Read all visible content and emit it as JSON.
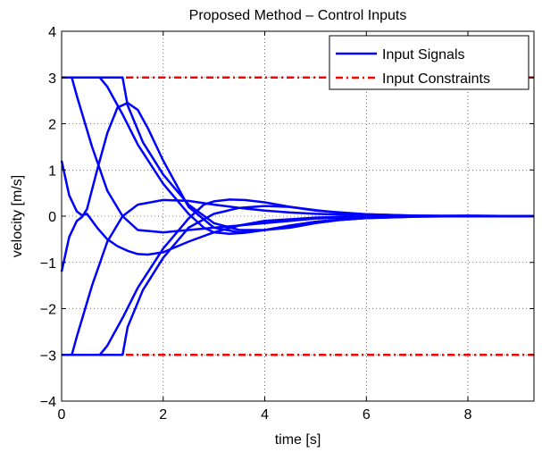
{
  "chart_data": {
    "type": "line",
    "title": "Proposed Method – Control Inputs",
    "xlabel": "time [s]",
    "ylabel": "velocity [m/s]",
    "xlim": [
      0,
      9.3
    ],
    "ylim": [
      -4,
      4
    ],
    "x_ticks": [
      "0",
      "2",
      "4",
      "6",
      "8"
    ],
    "x_tick_values": [
      0,
      2,
      4,
      6,
      8
    ],
    "y_ticks": [
      "−4",
      "−3",
      "−2",
      "−1",
      "0",
      "1",
      "2",
      "3",
      "4"
    ],
    "y_tick_values": [
      -4,
      -3,
      -2,
      -1,
      0,
      1,
      2,
      3,
      4
    ],
    "grid": true,
    "legend_position": "top-right",
    "legend": [
      {
        "label": "Input Signals",
        "color": "#0000ff",
        "style": "solid"
      },
      {
        "label": "Input Constraints",
        "color": "#ff0000",
        "style": "dashdot"
      }
    ],
    "constraints": [
      {
        "y": 3,
        "color": "#ff0000"
      },
      {
        "y": -3,
        "color": "#ff0000"
      }
    ],
    "series": [
      {
        "color": "#0000ff",
        "x": [
          0,
          0.15,
          0.3,
          0.4,
          0.5,
          0.7,
          0.9,
          1.1,
          1.3,
          1.5,
          1.7,
          2.0,
          2.5,
          3.0,
          3.5,
          4.0,
          5.0,
          6.0,
          7.0,
          8.0,
          9.3
        ],
        "y": [
          1.2,
          0.45,
          0.1,
          0.02,
          0.05,
          -0.25,
          -0.5,
          -0.65,
          -0.75,
          -0.82,
          -0.83,
          -0.78,
          -0.55,
          -0.35,
          -0.2,
          -0.1,
          -0.03,
          0.0,
          0.01,
          0.01,
          0.0
        ]
      },
      {
        "color": "#0000ff",
        "x": [
          0,
          0.15,
          0.3,
          0.4,
          0.5,
          0.7,
          0.9,
          1.1,
          1.3,
          1.5,
          1.7,
          2.0,
          2.5,
          3.0,
          3.5,
          4.0,
          5.0,
          6.0,
          7.0,
          8.0,
          9.3
        ],
        "y": [
          -1.2,
          -0.45,
          -0.1,
          -0.02,
          0.15,
          1.0,
          1.8,
          2.35,
          2.45,
          2.3,
          1.9,
          1.2,
          0.2,
          -0.25,
          -0.35,
          -0.3,
          -0.12,
          -0.03,
          0.0,
          0.01,
          0.0
        ]
      },
      {
        "color": "#0000ff",
        "x": [
          0,
          0.2,
          0.3,
          0.6,
          0.9,
          1.2,
          1.5,
          2.0,
          2.5,
          3.0,
          3.5,
          4.0,
          4.5,
          5.0,
          6.0,
          7.0,
          8.0,
          9.3
        ],
        "y": [
          3.0,
          3.0,
          2.6,
          1.5,
          0.55,
          0.0,
          -0.3,
          -0.35,
          -0.3,
          -0.25,
          -0.2,
          -0.15,
          -0.1,
          -0.05,
          -0.02,
          0.0,
          0.0,
          0.0
        ]
      },
      {
        "color": "#0000ff",
        "x": [
          0,
          0.2,
          0.3,
          0.6,
          0.9,
          1.2,
          1.5,
          2.0,
          2.5,
          3.0,
          3.5,
          4.0,
          4.5,
          5.0,
          6.0,
          7.0,
          8.0,
          9.3
        ],
        "y": [
          -3.0,
          -3.0,
          -2.6,
          -1.5,
          -0.55,
          0.0,
          0.25,
          0.35,
          0.33,
          0.25,
          0.18,
          0.12,
          0.08,
          0.05,
          0.02,
          0.0,
          0.0,
          0.0
        ]
      },
      {
        "color": "#0000ff",
        "x": [
          0,
          0.75,
          0.9,
          1.2,
          1.5,
          2.0,
          2.5,
          2.8,
          3.0,
          3.3,
          3.6,
          4.0,
          4.5,
          5.0,
          6.0,
          7.0,
          8.0,
          9.3
        ],
        "y": [
          3.0,
          3.0,
          2.8,
          2.2,
          1.55,
          0.7,
          0.05,
          -0.25,
          -0.35,
          -0.38,
          -0.36,
          -0.3,
          -0.2,
          -0.12,
          -0.04,
          -0.01,
          0.0,
          0.0
        ]
      },
      {
        "color": "#0000ff",
        "x": [
          0,
          0.75,
          0.9,
          1.2,
          1.5,
          2.0,
          2.5,
          2.8,
          3.0,
          3.3,
          3.6,
          4.0,
          4.5,
          5.0,
          6.0,
          7.0,
          8.0,
          9.3
        ],
        "y": [
          -3.0,
          -3.0,
          -2.8,
          -2.2,
          -1.55,
          -0.7,
          -0.05,
          0.25,
          0.32,
          0.36,
          0.35,
          0.3,
          0.2,
          0.12,
          0.04,
          0.01,
          0.0,
          0.0
        ]
      },
      {
        "color": "#0000ff",
        "x": [
          0,
          1.2,
          1.3,
          1.6,
          2.0,
          2.5,
          3.0,
          3.5,
          4.0,
          4.5,
          5.0,
          5.5,
          6.0,
          7.0,
          8.0,
          9.3
        ],
        "y": [
          3.0,
          3.0,
          2.4,
          1.6,
          0.9,
          0.25,
          -0.15,
          -0.3,
          -0.3,
          -0.25,
          -0.15,
          -0.08,
          -0.04,
          -0.01,
          0.0,
          0.0
        ]
      },
      {
        "color": "#0000ff",
        "x": [
          0,
          1.2,
          1.3,
          1.6,
          2.0,
          2.5,
          3.0,
          3.5,
          4.0,
          4.5,
          5.0,
          5.5,
          6.0,
          7.0,
          8.0,
          9.3
        ],
        "y": [
          -3.0,
          -3.0,
          -2.4,
          -1.6,
          -0.9,
          -0.25,
          0.05,
          0.18,
          0.22,
          0.2,
          0.13,
          0.07,
          0.04,
          0.01,
          0.0,
          0.0
        ]
      }
    ]
  }
}
